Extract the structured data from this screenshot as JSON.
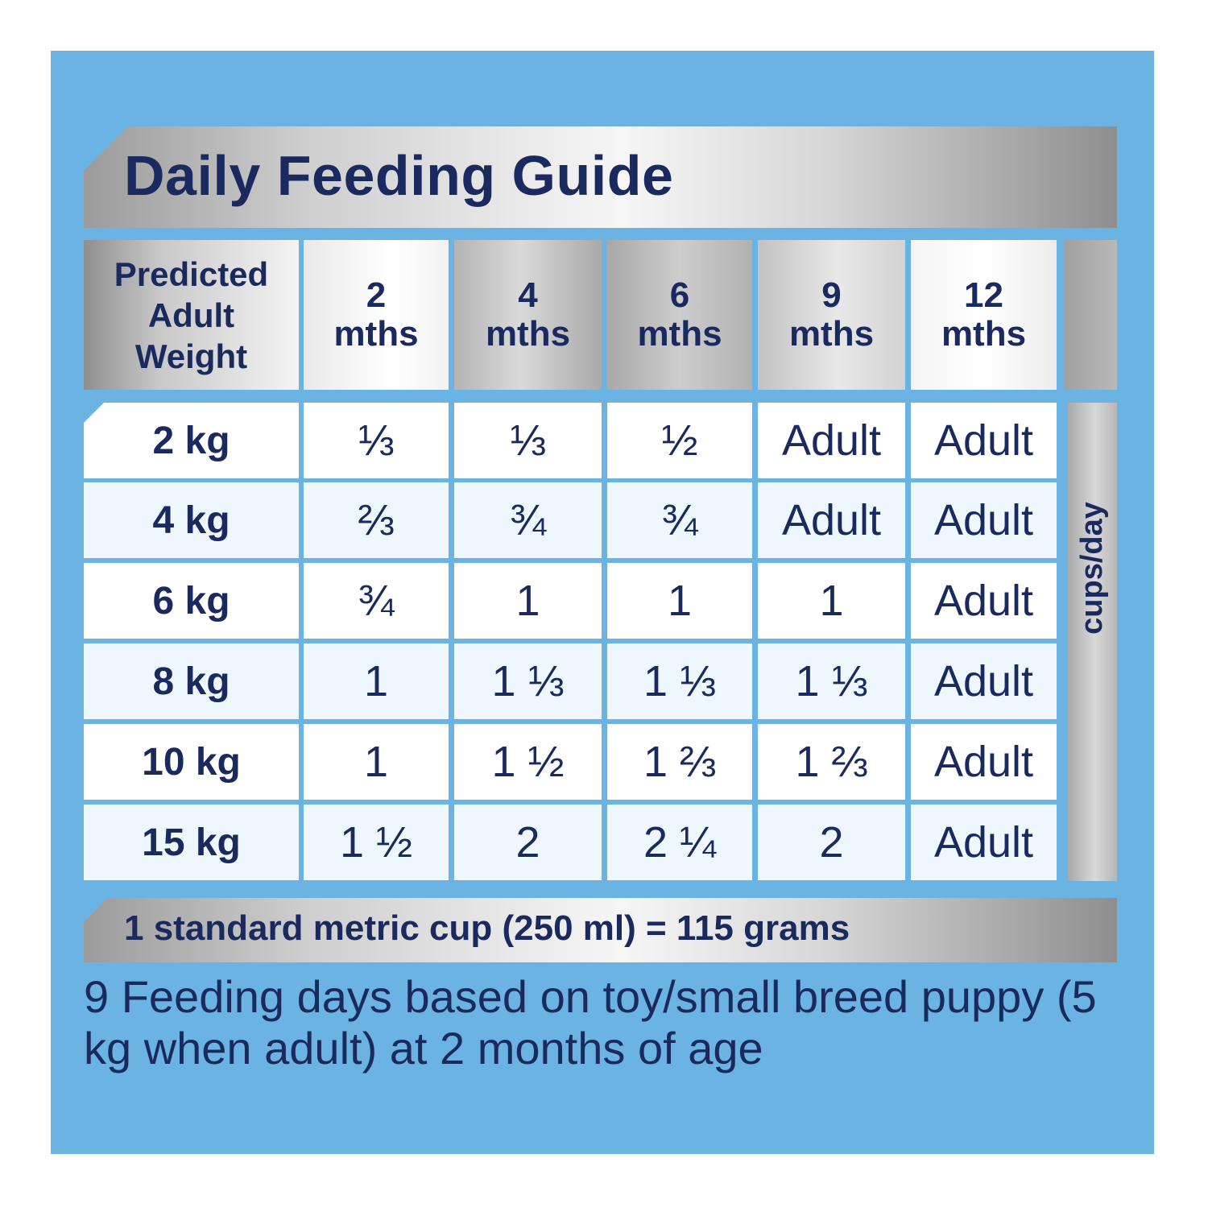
{
  "title": "Daily Feeding Guide",
  "header": {
    "weight_label": [
      "Predicted",
      "Adult",
      "Weight"
    ],
    "ages": [
      {
        "num": "2",
        "unit": "mths"
      },
      {
        "num": "4",
        "unit": "mths"
      },
      {
        "num": "6",
        "unit": "mths"
      },
      {
        "num": "9",
        "unit": "mths"
      },
      {
        "num": "12",
        "unit": "mths"
      }
    ]
  },
  "side_label": "cups/day",
  "rows": [
    {
      "weight": "2 kg",
      "values": [
        "⅓",
        "⅓",
        "½",
        "Adult",
        "Adult"
      ]
    },
    {
      "weight": "4 kg",
      "values": [
        "⅔",
        "¾",
        "¾",
        "Adult",
        "Adult"
      ]
    },
    {
      "weight": "6 kg",
      "values": [
        "¾",
        "1",
        "1",
        "1",
        "Adult"
      ]
    },
    {
      "weight": "8 kg",
      "values": [
        "1",
        "1 ⅓",
        "1 ⅓",
        "1 ⅓",
        "Adult"
      ]
    },
    {
      "weight": "10 kg",
      "values": [
        "1",
        "1 ½",
        "1 ⅔",
        "1 ⅔",
        "Adult"
      ]
    },
    {
      "weight": "15 kg",
      "values": [
        "1 ½",
        "2",
        "2 ¼",
        "2",
        "Adult"
      ]
    }
  ],
  "footer": "1 standard metric cup (250 ml) = 115 grams",
  "note": "9 Feeding days based on toy/small breed puppy (5 kg when adult) at 2 months of age"
}
